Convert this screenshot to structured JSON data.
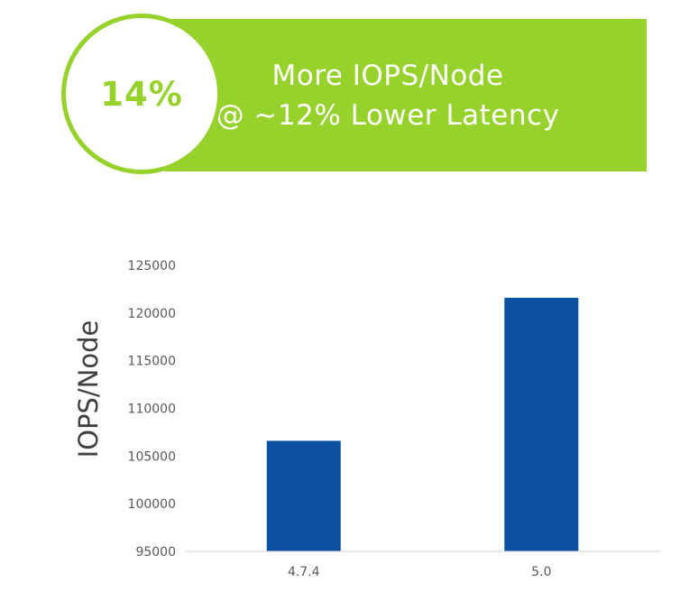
{
  "banner": {
    "badge": "14%",
    "line1": "More IOPS/Node",
    "line2": "@ ~12% Lower Latency"
  },
  "colors": {
    "banner_green": "#96d22b",
    "bar_blue": "#0c50a0"
  },
  "chart_data": {
    "type": "bar",
    "categories": [
      "4.7.4",
      "5.0"
    ],
    "values": [
      106600,
      121600
    ],
    "ylabel": "IOPS/Node",
    "ylim": [
      95000,
      125000
    ],
    "yticks": [
      95000,
      100000,
      105000,
      110000,
      115000,
      120000,
      125000
    ],
    "grid": false,
    "legend": "none"
  }
}
